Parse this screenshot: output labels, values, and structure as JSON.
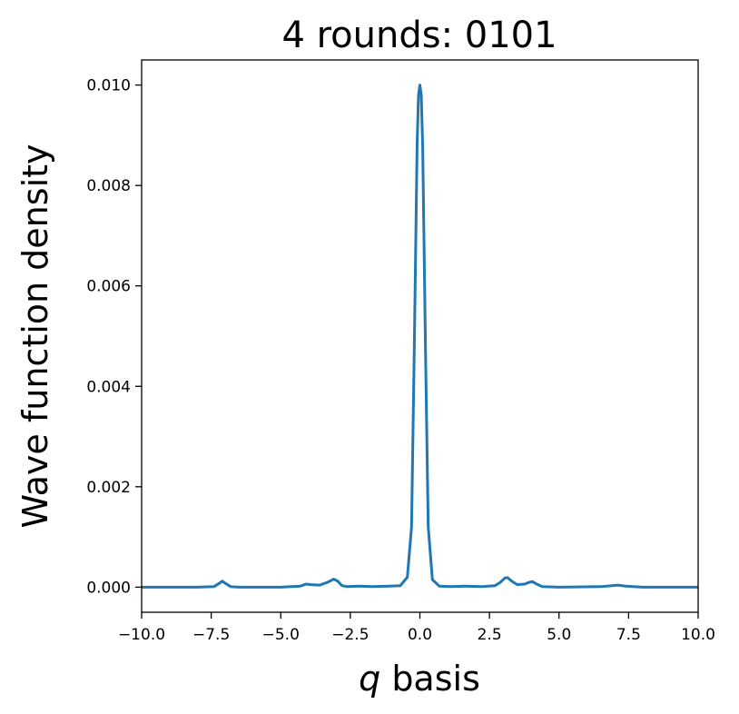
{
  "chart_data": {
    "type": "line",
    "title": "4 rounds: 0101",
    "xlabel_var": "q",
    "xlabel_rest": " basis",
    "ylabel": "Wave function density",
    "xlim": [
      -10,
      10
    ],
    "ylim": [
      -0.0005,
      0.0105
    ],
    "xticks": [
      -10,
      -7.5,
      -5,
      -2.5,
      0,
      2.5,
      5,
      7.5,
      10
    ],
    "xtick_labels": [
      "−10.0",
      "−7.5",
      "−5.0",
      "−2.5",
      "0.0",
      "2.5",
      "5.0",
      "7.5",
      "10.0"
    ],
    "yticks": [
      0,
      0.002,
      0.004,
      0.006,
      0.008,
      0.01
    ],
    "ytick_labels": [
      "0.000",
      "0.002",
      "0.004",
      "0.006",
      "0.008",
      "0.010"
    ],
    "grid": false,
    "series": [
      {
        "color": "#1f77b4",
        "x": [
          -10,
          -8,
          -7.4,
          -7.2,
          -7.1,
          -7.0,
          -6.8,
          -6.5,
          -5,
          -4.3,
          -4.1,
          -3.9,
          -3.6,
          -3.3,
          -3.1,
          -2.95,
          -2.8,
          -2.6,
          -2.2,
          -1.7,
          -1.1,
          -0.7,
          -0.45,
          -0.3,
          -0.2,
          -0.1,
          -0.05,
          0.0,
          0.05,
          0.1,
          0.2,
          0.3,
          0.45,
          0.7,
          1.1,
          1.6,
          2.2,
          2.7,
          2.9,
          3.05,
          3.15,
          3.3,
          3.5,
          3.75,
          3.95,
          4.05,
          4.2,
          4.4,
          5,
          6.5,
          6.9,
          7.1,
          7.4,
          8,
          10
        ],
        "y": [
          0.0,
          0.0,
          1e-05,
          8e-05,
          0.00012,
          8e-05,
          1e-05,
          0.0,
          0.0,
          2e-05,
          6e-05,
          5e-05,
          4e-05,
          0.0001,
          0.00016,
          0.00012,
          3e-05,
          1e-05,
          2e-05,
          1e-05,
          2e-05,
          3e-05,
          0.0002,
          0.0012,
          0.0048,
          0.0088,
          0.0098,
          0.01,
          0.0098,
          0.0088,
          0.0048,
          0.0012,
          0.00015,
          2e-05,
          1e-05,
          2e-05,
          1e-05,
          3e-05,
          0.0001,
          0.00018,
          0.00019,
          0.00012,
          5e-05,
          6e-05,
          0.0001,
          0.00011,
          6e-05,
          1e-05,
          0.0,
          1e-05,
          3e-05,
          4e-05,
          2e-05,
          0.0,
          0.0
        ]
      }
    ]
  }
}
